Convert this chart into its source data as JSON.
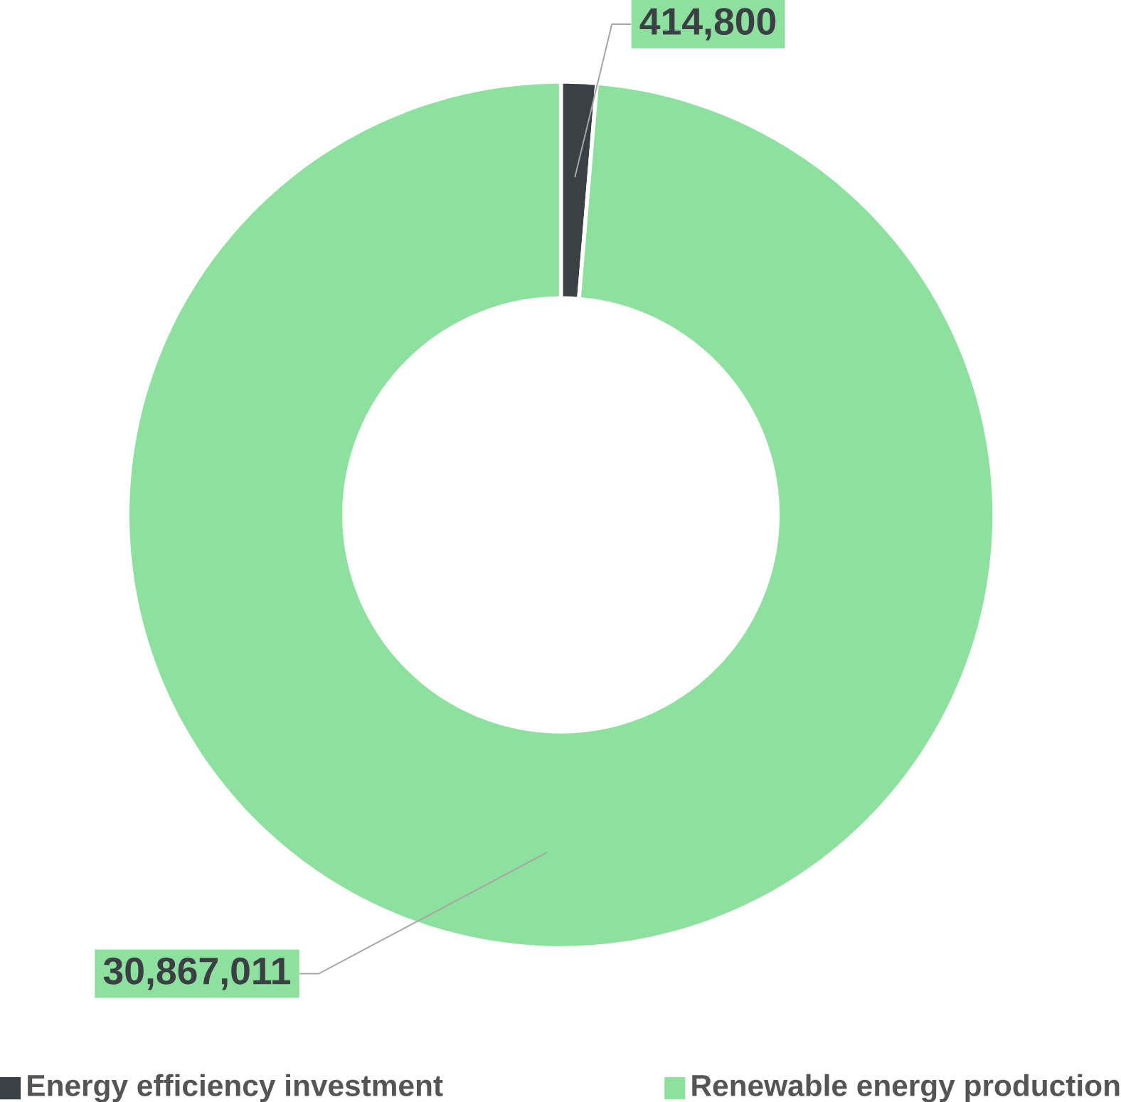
{
  "chart_data": {
    "type": "donut",
    "categories": [
      "Energy efficiency investment",
      "Renewable energy production"
    ],
    "values": [
      414800,
      30867011
    ],
    "colors": [
      "#3b4045",
      "#8ee09e"
    ],
    "value_labels": [
      "414,800",
      "30,867,011"
    ],
    "legend": "bottom"
  }
}
